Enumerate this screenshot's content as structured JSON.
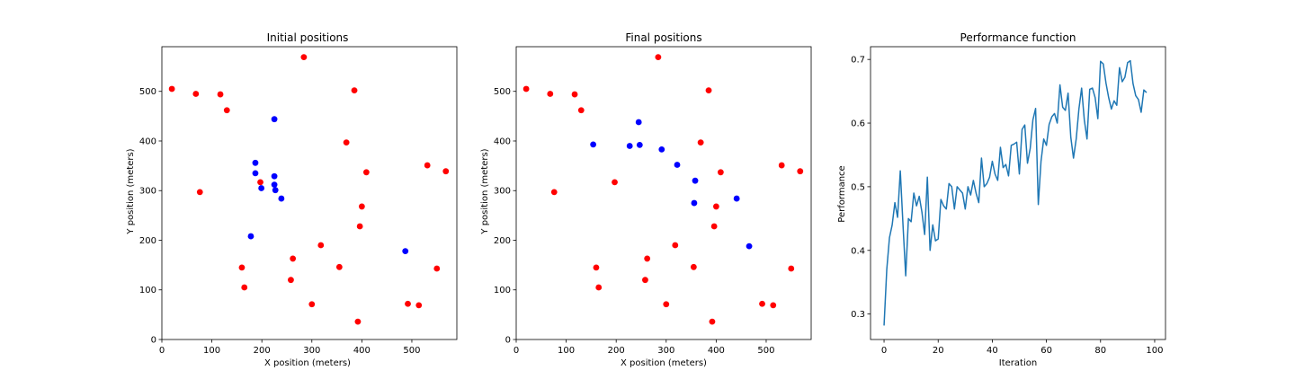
{
  "chart_data": [
    {
      "type": "scatter",
      "title": "Initial positions",
      "xlabel": "X position (meters)",
      "ylabel": "Y position (meters)",
      "xlim": [
        0,
        590
      ],
      "ylim": [
        0,
        590
      ],
      "xticks": [
        0,
        100,
        200,
        300,
        400,
        500
      ],
      "yticks": [
        0,
        100,
        200,
        300,
        400,
        500
      ],
      "series": [
        {
          "color": "#ff0000",
          "points": [
            [
              20,
              505
            ],
            [
              68,
              495
            ],
            [
              117,
              494
            ],
            [
              130,
              462
            ],
            [
              284,
              569
            ],
            [
              385,
              502
            ],
            [
              369,
              397
            ],
            [
              76,
              297
            ],
            [
              197,
              317
            ],
            [
              409,
              337
            ],
            [
              531,
              351
            ],
            [
              568,
              339
            ],
            [
              400,
              268
            ],
            [
              396,
              228
            ],
            [
              318,
              190
            ],
            [
              262,
              163
            ],
            [
              160,
              145
            ],
            [
              355,
              146
            ],
            [
              550,
              143
            ],
            [
              258,
              120
            ],
            [
              165,
              105
            ],
            [
              300,
              71
            ],
            [
              492,
              72
            ],
            [
              514,
              69
            ],
            [
              392,
              36
            ]
          ]
        },
        {
          "color": "#0000ff",
          "points": [
            [
              225,
              444
            ],
            [
              187,
              356
            ],
            [
              187,
              335
            ],
            [
              225,
              329
            ],
            [
              199,
              305
            ],
            [
              225,
              312
            ],
            [
              227,
              301
            ],
            [
              239,
              284
            ],
            [
              178,
              208
            ],
            [
              487,
              178
            ]
          ]
        }
      ]
    },
    {
      "type": "scatter",
      "title": "Final positions",
      "xlabel": "X position (meters)",
      "ylabel": "Y position (meters)",
      "xlim": [
        0,
        590
      ],
      "ylim": [
        0,
        590
      ],
      "xticks": [
        0,
        100,
        200,
        300,
        400,
        500
      ],
      "yticks": [
        0,
        100,
        200,
        300,
        400,
        500
      ],
      "series": [
        {
          "color": "#ff0000",
          "points": [
            [
              20,
              505
            ],
            [
              68,
              495
            ],
            [
              117,
              494
            ],
            [
              130,
              462
            ],
            [
              284,
              569
            ],
            [
              385,
              502
            ],
            [
              369,
              397
            ],
            [
              76,
              297
            ],
            [
              197,
              317
            ],
            [
              409,
              337
            ],
            [
              531,
              351
            ],
            [
              568,
              339
            ],
            [
              400,
              268
            ],
            [
              396,
              228
            ],
            [
              318,
              190
            ],
            [
              262,
              163
            ],
            [
              160,
              145
            ],
            [
              355,
              146
            ],
            [
              550,
              143
            ],
            [
              258,
              120
            ],
            [
              165,
              105
            ],
            [
              300,
              71
            ],
            [
              492,
              72
            ],
            [
              514,
              69
            ],
            [
              392,
              36
            ]
          ]
        },
        {
          "color": "#0000ff",
          "points": [
            [
              154,
              393
            ],
            [
              227,
              390
            ],
            [
              245,
              438
            ],
            [
              247,
              392
            ],
            [
              291,
              383
            ],
            [
              322,
              352
            ],
            [
              358,
              320
            ],
            [
              356,
              275
            ],
            [
              441,
              284
            ],
            [
              466,
              188
            ]
          ]
        }
      ]
    },
    {
      "type": "line",
      "title": "Performance function",
      "xlabel": "Iteration",
      "ylabel": "Performance",
      "xlim": [
        -5,
        104
      ],
      "ylim": [
        0.26,
        0.72
      ],
      "xticks": [
        0,
        20,
        40,
        60,
        80,
        100
      ],
      "yticks": [
        0.3,
        0.4,
        0.5,
        0.6,
        0.7
      ],
      "series": [
        {
          "color": "#1f77b4",
          "values": [
            0.282,
            0.37,
            0.42,
            0.44,
            0.475,
            0.452,
            0.525,
            0.44,
            0.36,
            0.45,
            0.445,
            0.49,
            0.47,
            0.485,
            0.46,
            0.425,
            0.515,
            0.4,
            0.44,
            0.415,
            0.418,
            0.48,
            0.47,
            0.465,
            0.505,
            0.5,
            0.465,
            0.5,
            0.495,
            0.49,
            0.465,
            0.5,
            0.487,
            0.51,
            0.49,
            0.475,
            0.545,
            0.5,
            0.505,
            0.515,
            0.54,
            0.52,
            0.51,
            0.562,
            0.53,
            0.535,
            0.517,
            0.565,
            0.567,
            0.57,
            0.52,
            0.59,
            0.597,
            0.537,
            0.56,
            0.605,
            0.623,
            0.472,
            0.54,
            0.575,
            0.565,
            0.598,
            0.61,
            0.615,
            0.6,
            0.66,
            0.625,
            0.62,
            0.647,
            0.578,
            0.545,
            0.575,
            0.622,
            0.655,
            0.605,
            0.575,
            0.653,
            0.655,
            0.64,
            0.607,
            0.697,
            0.693,
            0.663,
            0.64,
            0.622,
            0.635,
            0.628,
            0.687,
            0.665,
            0.672,
            0.695,
            0.698,
            0.662,
            0.643,
            0.637,
            0.617,
            0.652,
            0.648
          ]
        }
      ]
    }
  ]
}
